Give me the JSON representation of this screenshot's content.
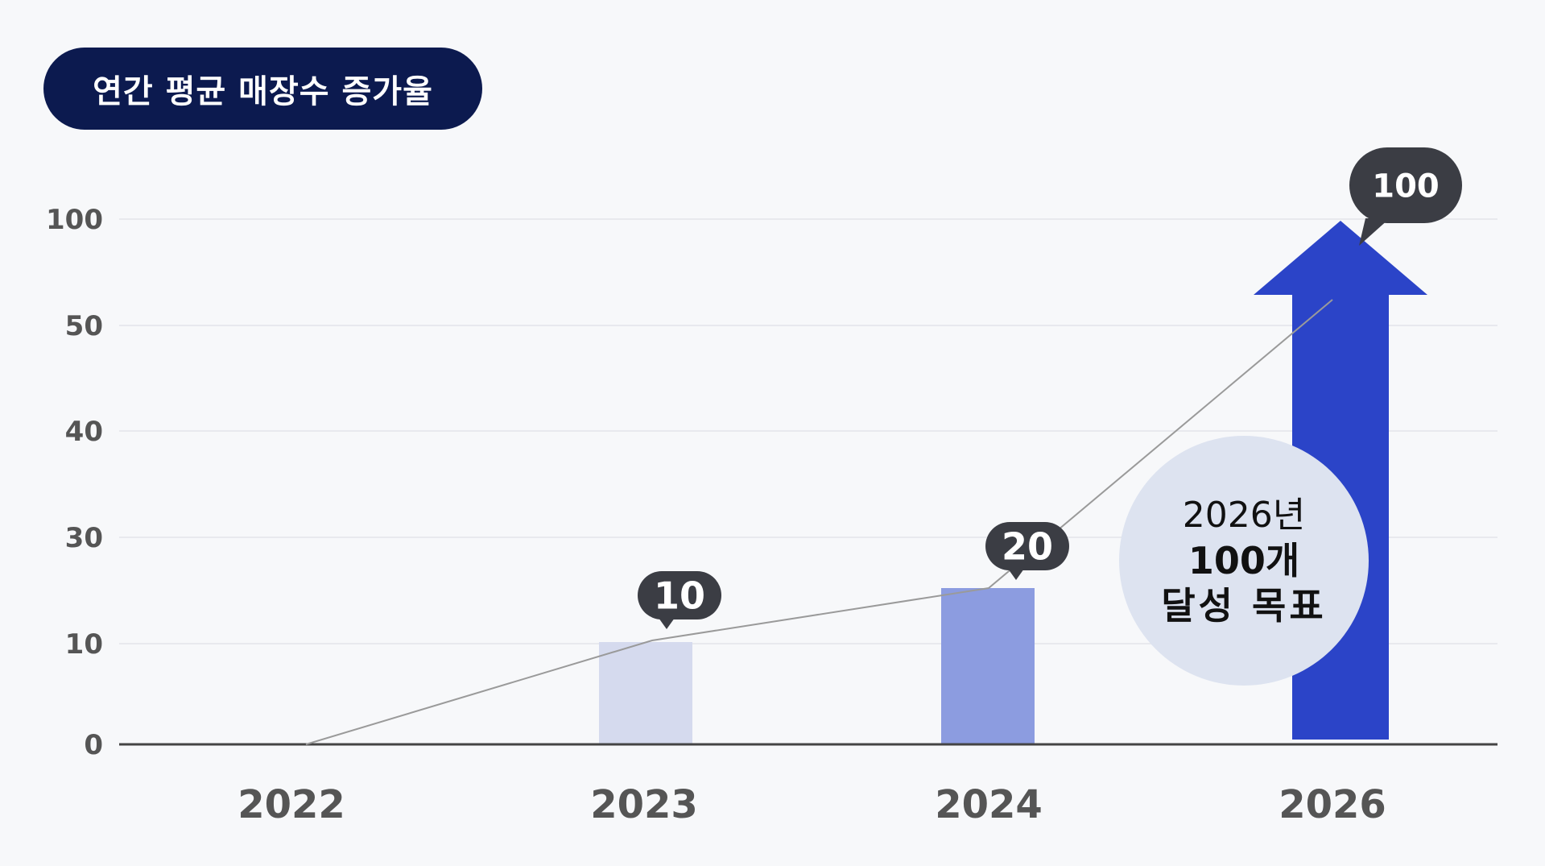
{
  "title": "연간 평균 매장수 증가율",
  "chart_data": {
    "type": "bar",
    "title": "연간 평균 매장수 증가율",
    "categories": [
      "2022",
      "2023",
      "2024",
      "2026"
    ],
    "values": [
      0,
      10,
      20,
      100
    ],
    "value_labels": [
      "",
      "10",
      "20",
      "100"
    ],
    "y_ticks": [
      "0",
      "10",
      "30",
      "40",
      "50",
      "100"
    ],
    "xlabel": "",
    "ylabel": "",
    "grid": true,
    "legend": "none",
    "colors": {
      "bar_2023": "#d5daee",
      "bar_2024": "#8c9ce0",
      "arrow_2026": "#2b44c8",
      "bubble": "#3b3d44",
      "trend_line": "#9a9a9a",
      "axis": "#444444",
      "grid": "#e8e9ee"
    },
    "annotation": {
      "line1": "2026년",
      "line2": "100개",
      "line3": "달성 목표"
    }
  }
}
